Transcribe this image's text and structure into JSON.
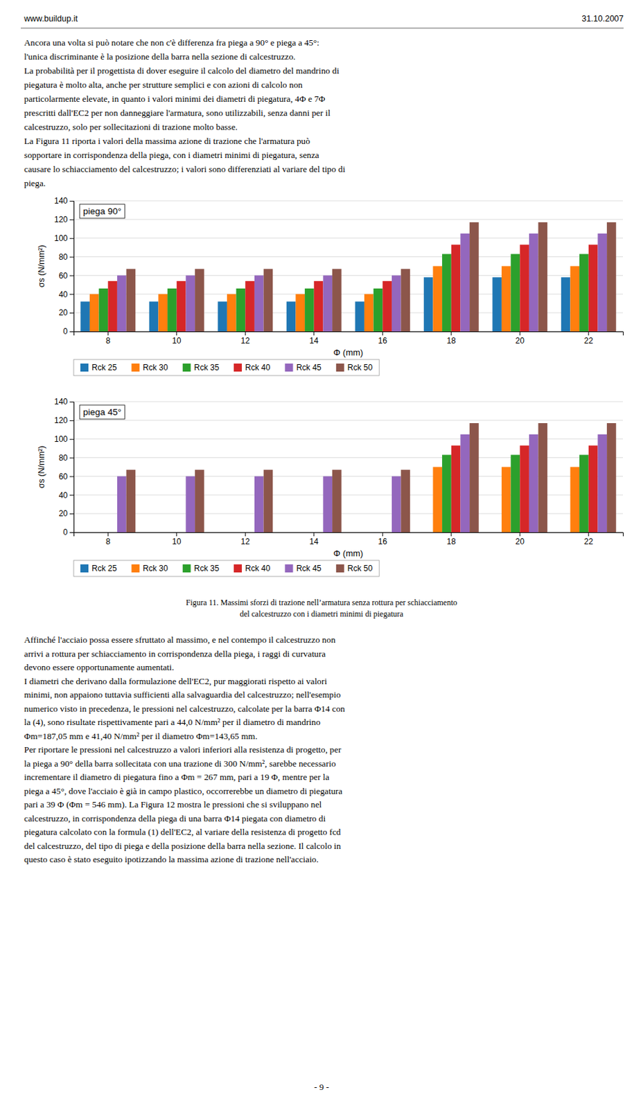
{
  "page_header_left": "www.buildup.it",
  "page_header_right": "31.10.2007",
  "page_footer": "- 9 -",
  "text_top": [
    "Ancora una volta si può notare che non c'è differenza fra piega a 90° e piega a 45°:",
    "l'unica discriminante è la posizione della barra nella sezione di calcestruzzo.",
    "La probabilità per il progettista di dover eseguire il calcolo del diametro del mandrino di",
    "piegatura è molto alta, anche per strutture semplici e con azioni di calcolo non",
    "particolarmente elevate, in quanto i valori minimi dei diametri di piegatura, 4Φ e 7Φ",
    "prescritti dall'EC2 per non danneggiare l'armatura, sono utilizzabili, senza danni per il",
    "calcestruzzo, solo per sollecitazioni di trazione molto basse.",
    "La Figura 11 riporta i valori della massima azione di trazione che l'armatura può",
    "sopportare in corrispondenza della piega, con i diametri minimi di piegatura, senza",
    "causare lo schiacciamento del calcestruzzo; i valori sono differenziati al variare del tipo di",
    "piega."
  ],
  "caption": [
    "Figura 11. Massimi sforzi di trazione nell’armatura senza rottura per schiacciamento",
    "del calcestruzzo con i diametri minimi di piegatura"
  ],
  "text_bottom": [
    "Affinché l'acciaio possa essere sfruttato al massimo, e nel contempo il calcestruzzo non",
    "arrivi a rottura per schiacciamento in corrispondenza della piega, i raggi di curvatura",
    "devono essere opportunamente aumentati.",
    "I diametri che derivano dalla formulazione dell'EC2, pur maggiorati rispetto ai valori",
    "minimi, non appaiono tuttavia sufficienti alla salvaguardia del calcestruzzo; nell'esempio",
    "numerico visto in precedenza, le pressioni nel calcestruzzo, calcolate per la barra Φ14 con",
    "la (4), sono risultate rispettivamente pari a 44,0 N/mm² per il diametro di mandrino",
    "Φm=187,05 mm e 41,40 N/mm² per il diametro Φm=143,65 mm.",
    "Per riportare le pressioni nel calcestruzzo a valori inferiori alla resistenza di progetto, per",
    "la piega a 90° della barra sollecitata con una trazione di 300 N/mm², sarebbe necessario",
    "incrementare il diametro di piegatura fino a Φm = 267 mm, pari a 19 Φ, mentre per la",
    "piega a 45°, dove l'acciaio è già in campo plastico, occorrerebbe un diametro di piegatura",
    "pari a 39 Φ (Φm = 546 mm). La Figura 12 mostra le pressioni che si sviluppano nel",
    "calcestruzzo, in corrispondenza della piega di una barra Φ14 piegata con diametro di",
    "piegatura calcolato con la formula (1) dell'EC2, al variare della resistenza di progetto fcd",
    "del calcestruzzo, del tipo di piega e della posizione della barra nella sezione. Il calcolo in",
    "questo caso è stato eseguito ipotizzando la massima azione di trazione nell'acciaio."
  ],
  "chart_data": [
    {
      "type": "bar",
      "title": "piega 90°",
      "categories": [
        "8",
        "10",
        "12",
        "14",
        "16",
        "18",
        "20",
        "22"
      ],
      "series": [
        {
          "name": "Rck 25",
          "values": [
            32,
            32,
            32,
            32,
            32,
            58,
            58,
            58
          ]
        },
        {
          "name": "Rck 30",
          "values": [
            40,
            40,
            40,
            40,
            40,
            70,
            70,
            70
          ]
        },
        {
          "name": "Rck 35",
          "values": [
            46,
            46,
            46,
            46,
            46,
            83,
            83,
            83
          ]
        },
        {
          "name": "Rck 40",
          "values": [
            54,
            54,
            54,
            54,
            54,
            93,
            93,
            93
          ]
        },
        {
          "name": "Rck 45",
          "values": [
            60,
            60,
            60,
            60,
            60,
            105,
            105,
            105
          ]
        },
        {
          "name": "Rck 50",
          "values": [
            67,
            67,
            67,
            67,
            67,
            117,
            117,
            117
          ]
        }
      ],
      "xlabel": "Φ (mm)",
      "ylabel": "σs (N/mm²)",
      "ylim": [
        0,
        140
      ],
      "yticks": [
        0,
        20,
        40,
        60,
        80,
        100,
        120,
        140
      ],
      "grid": true,
      "legend": "bottom"
    },
    {
      "type": "bar",
      "title": "piega 45°",
      "categories": [
        "8",
        "10",
        "12",
        "14",
        "16",
        "18",
        "20",
        "22"
      ],
      "series": [
        {
          "name": "Rck 25",
          "values": [
            0,
            0,
            0,
            0,
            0,
            0,
            0,
            0
          ]
        },
        {
          "name": "Rck 30",
          "values": [
            0,
            0,
            0,
            0,
            0,
            70,
            70,
            70
          ]
        },
        {
          "name": "Rck 35",
          "values": [
            0,
            0,
            0,
            0,
            0,
            83,
            83,
            83
          ]
        },
        {
          "name": "Rck 40",
          "values": [
            0,
            0,
            0,
            0,
            0,
            93,
            93,
            93
          ]
        },
        {
          "name": "Rck 45",
          "values": [
            60,
            60,
            60,
            60,
            60,
            105,
            105,
            105
          ]
        },
        {
          "name": "Rck 50",
          "values": [
            67,
            67,
            67,
            67,
            67,
            117,
            117,
            117
          ]
        }
      ],
      "xlabel": "Φ (mm)",
      "ylabel": "σs (N/mm²)",
      "ylim": [
        0,
        140
      ],
      "yticks": [
        0,
        20,
        40,
        60,
        80,
        100,
        120,
        140
      ],
      "grid": true,
      "legend": "bottom"
    }
  ]
}
